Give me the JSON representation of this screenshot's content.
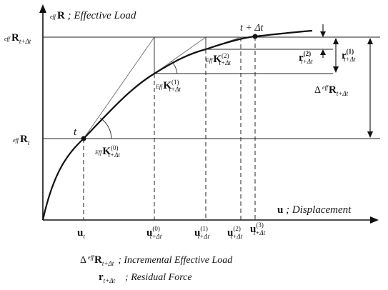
{
  "axes": {
    "y_label": {
      "pre": "eff",
      "main": "R",
      "desc": " ; Effective Load"
    },
    "x_label": {
      "main": "u",
      "desc": " ; Displacement"
    }
  },
  "y_ticks": {
    "upper": {
      "pre": "eff",
      "main": "R",
      "sub": "t+Δt"
    },
    "lower": {
      "pre": "eff",
      "main": "R",
      "sub": "t"
    }
  },
  "points": {
    "t": "t",
    "t_dt": "t + Δt"
  },
  "stiffness": [
    {
      "pre": "Eff",
      "main": "K",
      "sup": "(0)",
      "sub": "t+Δt"
    },
    {
      "pre": "Eff",
      "main": "K",
      "sup": "(1)",
      "sub": "t+Δt"
    },
    {
      "pre": "Eff",
      "main": "K",
      "sup": "(2)",
      "sub": "t+Δt"
    }
  ],
  "residuals": {
    "r1": {
      "main": "r",
      "sup": "(1)",
      "sub": "t+Δt"
    },
    "r2": {
      "main": "r",
      "sup": "(2)",
      "sub": "t+Δt"
    }
  },
  "delta_R": {
    "delta": "Δ",
    "pre": "eff",
    "main": "R",
    "sub": "t+Δt"
  },
  "x_ticks": [
    {
      "main": "u",
      "sup": "",
      "sub": "t"
    },
    {
      "main": "u",
      "sup": "(0)",
      "sub": "t+Δt"
    },
    {
      "main": "u",
      "sup": "(1)",
      "sub": "t+Δt"
    },
    {
      "main": "u",
      "sup": "(2)",
      "sub": "t+Δt"
    },
    {
      "main": "u",
      "sup": "(3)",
      "sub": "t+Δt"
    }
  ],
  "legend": [
    {
      "delta": "Δ",
      "pre": "eff",
      "main": "R",
      "sub": "t+Δt",
      "desc": "; Incremental Effective Load"
    },
    {
      "main": "r",
      "sub": "t+Δt",
      "desc": "; Residual Force"
    }
  ]
}
